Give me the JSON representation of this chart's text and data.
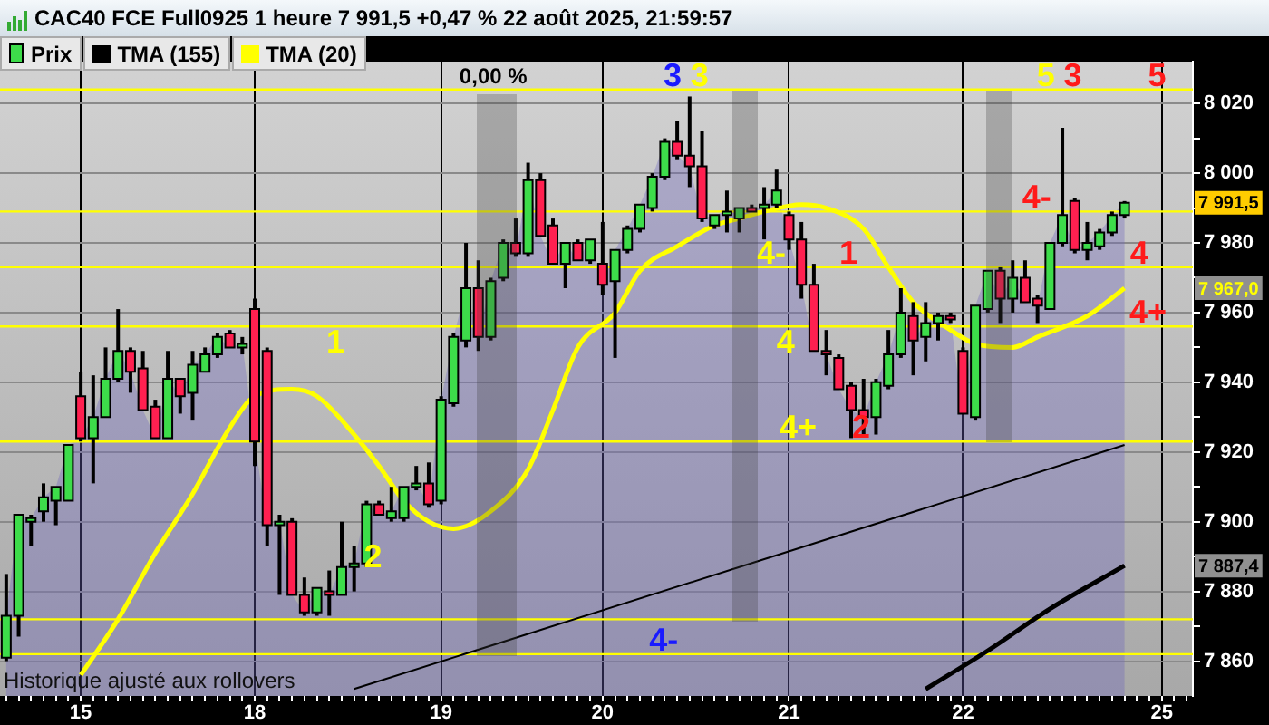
{
  "chart_data": {
    "type": "candlestick",
    "title": "CAC40 FCE Full0925 1 heure 7 991,5 +0,47 % 22 août 2025, 21:59:57",
    "categories": [
      null,
      null,
      null,
      null,
      null,
      null,
      "15",
      null,
      null,
      null,
      null,
      null,
      null,
      null,
      null,
      null,
      null,
      null,
      null,
      null,
      "18",
      null,
      null,
      null,
      null,
      null,
      null,
      null,
      null,
      null,
      null,
      null,
      null,
      null,
      null,
      "19",
      null,
      null,
      null,
      null,
      null,
      null,
      null,
      null,
      null,
      null,
      null,
      null,
      "20",
      null,
      null,
      null,
      null,
      null,
      null,
      null,
      null,
      null,
      null,
      null,
      null,
      null,
      null,
      "21",
      null,
      null,
      null,
      null,
      null,
      null,
      null,
      null,
      null,
      null,
      null,
      null,
      null,
      "22",
      null,
      null,
      null,
      null,
      null,
      null,
      null,
      null,
      null,
      null,
      null,
      null,
      null,
      null,
      null,
      "25",
      null,
      null
    ],
    "series": [
      {
        "name": "Prix",
        "type": "candlestick",
        "ohlc": [
          [
            7861,
            7885,
            7860,
            7873
          ],
          [
            7873,
            7902,
            7867,
            7902
          ],
          [
            7900,
            7902,
            7893,
            7901
          ],
          [
            7903,
            7911,
            7900,
            7907
          ],
          [
            7906,
            7910,
            7899,
            7910
          ],
          [
            7906,
            7922,
            7906,
            7922
          ],
          [
            7936,
            7943,
            7923,
            7924
          ],
          [
            7924,
            7942,
            7911,
            7930
          ],
          [
            7930,
            7950,
            7930,
            7941
          ],
          [
            7941,
            7961,
            7940,
            7949
          ],
          [
            7949,
            7950,
            7937,
            7943
          ],
          [
            7944,
            7949,
            7932,
            7932
          ],
          [
            7933,
            7935,
            7924,
            7924
          ],
          [
            7924,
            7949,
            7924,
            7941
          ],
          [
            7941,
            7941,
            7931,
            7936
          ],
          [
            7937,
            7949,
            7929,
            7945
          ],
          [
            7943,
            7950,
            7943,
            7948
          ],
          [
            7948,
            7954,
            7947,
            7953
          ],
          [
            7954,
            7955,
            7950,
            7950
          ],
          [
            7950,
            7953,
            7948,
            7951
          ],
          [
            7961,
            7964,
            7916,
            7923
          ],
          [
            7949,
            7950,
            7893,
            7899
          ],
          [
            7899,
            7902,
            7879,
            7900
          ],
          [
            7900,
            7901,
            7879,
            7879
          ],
          [
            7879,
            7884,
            7873,
            7874
          ],
          [
            7874,
            7881,
            7873,
            7881
          ],
          [
            7880,
            7886,
            7873,
            7879
          ],
          [
            7879,
            7900,
            7879,
            7887
          ],
          [
            7887,
            7893,
            7880,
            7888
          ],
          [
            7888,
            7906,
            7887,
            7905
          ],
          [
            7905,
            7906,
            7902,
            7902
          ],
          [
            7901,
            7910,
            7900,
            7903
          ],
          [
            7901,
            7910,
            7900,
            7910
          ],
          [
            7910,
            7916,
            7909,
            7911
          ],
          [
            7911,
            7917,
            7904,
            7905
          ],
          [
            7906,
            7936,
            7905,
            7935
          ],
          [
            7934,
            7954,
            7933,
            7953
          ],
          [
            7952,
            7980,
            7950,
            7967
          ],
          [
            7967,
            7975,
            7949,
            7953
          ],
          [
            7953,
            7970,
            7952,
            7969
          ],
          [
            7970,
            7981,
            7969,
            7980
          ],
          [
            7980,
            7987,
            7976,
            7977
          ],
          [
            7977,
            8003,
            7976,
            7998
          ],
          [
            7998,
            8000,
            7982,
            7982
          ],
          [
            7985,
            7987,
            7974,
            7974
          ],
          [
            7974,
            7980,
            7967,
            7980
          ],
          [
            7980,
            7981,
            7975,
            7975
          ],
          [
            7975,
            7981,
            7974,
            7981
          ],
          [
            7974,
            7986,
            7965,
            7968
          ],
          [
            7969,
            7978,
            7947,
            7978
          ],
          [
            7978,
            7985,
            7977,
            7984
          ],
          [
            7984,
            7991,
            7983,
            7991
          ],
          [
            7990,
            8000,
            7989,
            7999
          ],
          [
            7999,
            8010,
            7998,
            8009
          ],
          [
            8009,
            8015,
            8004,
            8005
          ],
          [
            8005,
            8022,
            7996,
            8002
          ],
          [
            8002,
            8012,
            7986,
            7987
          ],
          [
            7985,
            7988,
            7984,
            7988
          ],
          [
            7988,
            7995,
            7983,
            7989
          ],
          [
            7987,
            7990,
            7983,
            7990
          ],
          [
            7990,
            7991,
            7989,
            7989
          ],
          [
            7990,
            7996,
            7981,
            7991
          ],
          [
            7991,
            8001,
            7990,
            7995
          ],
          [
            7988,
            7989,
            7978,
            7981
          ],
          [
            7981,
            7986,
            7964,
            7968
          ],
          [
            7968,
            7974,
            7949,
            7949
          ],
          [
            7949,
            7955,
            7942,
            7948
          ],
          [
            7947,
            7948,
            7938,
            7938
          ],
          [
            7939,
            7940,
            7924,
            7932
          ],
          [
            7932,
            7941,
            7925,
            7930
          ],
          [
            7930,
            7941,
            7925,
            7940
          ],
          [
            7939,
            7955,
            7938,
            7948
          ],
          [
            7948,
            7967,
            7947,
            7960
          ],
          [
            7959,
            7963,
            7942,
            7952
          ],
          [
            7953,
            7963,
            7946,
            7957
          ],
          [
            7957,
            7960,
            7952,
            7959
          ],
          [
            7959,
            7960,
            7957,
            7958
          ],
          [
            7949,
            7950,
            7931,
            7931
          ],
          [
            7930,
            7962,
            7929,
            7962
          ],
          [
            7961,
            7972,
            7960,
            7972
          ],
          [
            7972,
            7973,
            7957,
            7964
          ],
          [
            7964,
            7975,
            7960,
            7970
          ],
          [
            7970,
            7975,
            7963,
            7963
          ],
          [
            7964,
            7965,
            7957,
            7962
          ],
          [
            7961,
            7980,
            7961,
            7980
          ],
          [
            7980,
            8013,
            7979,
            7988
          ],
          [
            7992,
            7993,
            7977,
            7978
          ],
          [
            7978,
            7986,
            7975,
            7980
          ],
          [
            7979,
            7984,
            7978,
            7983
          ],
          [
            7983,
            7989,
            7982,
            7988
          ],
          [
            7988,
            7992,
            7987,
            7991.5
          ],
          null,
          null,
          null,
          null,
          null
        ]
      },
      {
        "name": "TMA (155)",
        "type": "line",
        "color": "#000000",
        "values": [
          null,
          null,
          null,
          null,
          null,
          null,
          null,
          null,
          null,
          null,
          null,
          null,
          null,
          null,
          null,
          null,
          null,
          null,
          null,
          null,
          null,
          null,
          null,
          null,
          null,
          null,
          null,
          null,
          null,
          null,
          null,
          null,
          null,
          null,
          null,
          null,
          null,
          null,
          null,
          null,
          null,
          null,
          null,
          null,
          null,
          null,
          null,
          null,
          null,
          null,
          null,
          null,
          null,
          null,
          null,
          null,
          null,
          null,
          null,
          null,
          null,
          null,
          null,
          null,
          null,
          null,
          null,
          null,
          null,
          null,
          null,
          null,
          null,
          null,
          7852,
          null,
          null,
          null,
          null,
          7863,
          null,
          null,
          null,
          null,
          7875,
          null,
          null,
          null,
          null,
          null,
          7887.4,
          null,
          null,
          null,
          null,
          null
        ]
      },
      {
        "name": "TMA (20)",
        "type": "line",
        "color": "#ffff00",
        "values": [
          null,
          null,
          null,
          null,
          null,
          null,
          7856,
          null,
          null,
          7872,
          null,
          null,
          7891,
          null,
          null,
          7908,
          null,
          null,
          7927,
          null,
          7936,
          null,
          null,
          7938,
          null,
          7936,
          null,
          null,
          7925,
          null,
          7916,
          null,
          7906,
          null,
          7900,
          null,
          7898,
          null,
          null,
          7903,
          null,
          null,
          7915,
          null,
          7932,
          null,
          7950,
          null,
          null,
          7960,
          null,
          7972,
          null,
          null,
          7979,
          null,
          null,
          7985,
          null,
          7987,
          null,
          7989,
          null,
          null,
          7991,
          null,
          7990,
          null,
          null,
          7984,
          null,
          7973,
          null,
          7963,
          null,
          null,
          7955,
          null,
          7951,
          null,
          null,
          7950,
          null,
          7953,
          null,
          null,
          null,
          7959,
          null,
          null,
          7967,
          null,
          null,
          null,
          null,
          null
        ]
      },
      {
        "type": "line",
        "color": "#000000",
        "values": [
          null,
          null,
          null,
          null,
          null,
          null,
          null,
          null,
          null,
          null,
          null,
          null,
          null,
          null,
          null,
          null,
          null,
          null,
          null,
          null,
          null,
          null,
          null,
          null,
          null,
          null,
          null,
          null,
          7852,
          null,
          null,
          null,
          null,
          null,
          null,
          null,
          null,
          null,
          null,
          null,
          null,
          null,
          null,
          null,
          null,
          null,
          null,
          null,
          null,
          null,
          null,
          null,
          null,
          null,
          null,
          null,
          null,
          null,
          null,
          null,
          null,
          null,
          null,
          null,
          null,
          null,
          null,
          null,
          null,
          null,
          null,
          null,
          null,
          null,
          null,
          null,
          null,
          null,
          null,
          null,
          null,
          null,
          null,
          null,
          null,
          null,
          null,
          null,
          null,
          null,
          7922,
          null,
          null,
          null,
          null,
          null
        ]
      }
    ],
    "ylim": [
      7850,
      8032
    ],
    "yticks": [
      {
        "value": 7860,
        "label": "7 860"
      },
      {
        "value": 7870,
        "label": null
      },
      {
        "value": 7880,
        "label": "7 880"
      },
      {
        "value": 7890,
        "label": null
      },
      {
        "value": 7900,
        "label": "7 900"
      },
      {
        "value": 7910,
        "label": null
      },
      {
        "value": 7920,
        "label": "7 920"
      },
      {
        "value": 7930,
        "label": null
      },
      {
        "value": 7940,
        "label": "7 940"
      },
      {
        "value": 7950,
        "label": null
      },
      {
        "value": 7960,
        "label": "7 960"
      },
      {
        "value": 7970,
        "label": null
      },
      {
        "value": 7980,
        "label": "7 980"
      },
      {
        "value": 7990,
        "label": null
      },
      {
        "value": 8000,
        "label": "8 000"
      },
      {
        "value": 8010,
        "label": null
      },
      {
        "value": 8020,
        "label": "8 020"
      }
    ],
    "ref_lines": [
      {
        "axis": "y",
        "value": 8024,
        "color": "#ffff00"
      },
      {
        "axis": "y",
        "value": 7989,
        "color": "#ffff00"
      },
      {
        "axis": "y",
        "value": 7973,
        "color": "#ffff00"
      },
      {
        "axis": "y",
        "value": 7956,
        "color": "#ffff00"
      },
      {
        "axis": "y",
        "value": 7923,
        "color": "#ffff00"
      },
      {
        "axis": "y",
        "value": 7872,
        "color": "#ffff00"
      },
      {
        "axis": "y",
        "value": 7862,
        "color": "#ffff00"
      }
    ],
    "annotations": [
      "0,00 %",
      {
        "text": "3",
        "y": 8024
      },
      {
        "text": "3",
        "y": 8024
      },
      "1",
      {
        "text": "2",
        "y": 7886
      },
      {
        "text": "4-",
        "y": 7973
      },
      "4",
      {
        "text": "4+",
        "y": 7923
      },
      {
        "text": "4-",
        "y": 7862
      },
      {
        "text": "1",
        "y": 7973
      },
      {
        "text": "2",
        "y": 7923
      },
      {
        "text": "5",
        "y": 8024
      },
      {
        "text": "3",
        "y": 8024
      },
      {
        "text": "4-",
        "y": 7989
      },
      {
        "text": "5",
        "y": 8024
      },
      {
        "text": "4",
        "y": 7973
      },
      {
        "text": "4+",
        "y": 7956
      },
      {
        "text": "7 991,5",
        "y": 7991.5
      },
      {
        "text": "7 967,0",
        "y": 7967
      },
      {
        "text": "7 887,4",
        "y": 7887.4
      },
      "Historique ajusté aux rollovers"
    ],
    "grid": true,
    "legend": "top left",
    "marker": "none",
    "line_style": "solid"
  }
}
